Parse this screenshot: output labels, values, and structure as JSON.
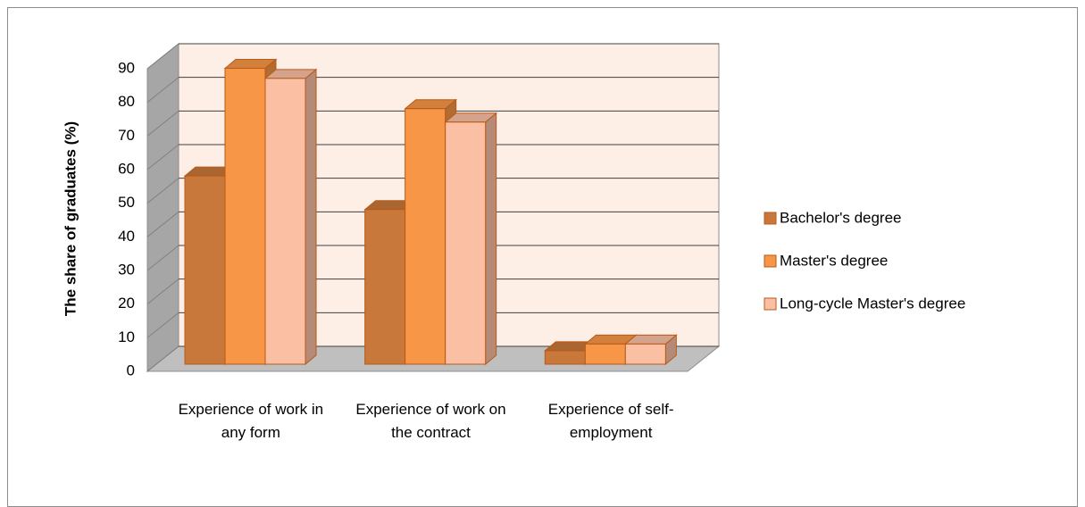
{
  "chart_data": {
    "type": "bar3d",
    "y_label": "The share of graduates (%)",
    "categories": [
      "Experience of work in any form",
      "Experience of work on the contract",
      "Experience of self-employment"
    ],
    "series": [
      {
        "name": "Bachelor's degree",
        "color": "#c8783a",
        "values": [
          56,
          46,
          4
        ]
      },
      {
        "name": "Master's degree",
        "color": "#f79646",
        "values": [
          88,
          76,
          6
        ]
      },
      {
        "name": "Long-cycle Master's degree",
        "color": "#fbc0a4",
        "values": [
          85,
          72,
          6
        ]
      }
    ],
    "ylim": [
      0,
      90
    ],
    "yticks": [
      0,
      10,
      20,
      30,
      40,
      50,
      60,
      70,
      80,
      90
    ],
    "grid": true,
    "legend": "right"
  }
}
